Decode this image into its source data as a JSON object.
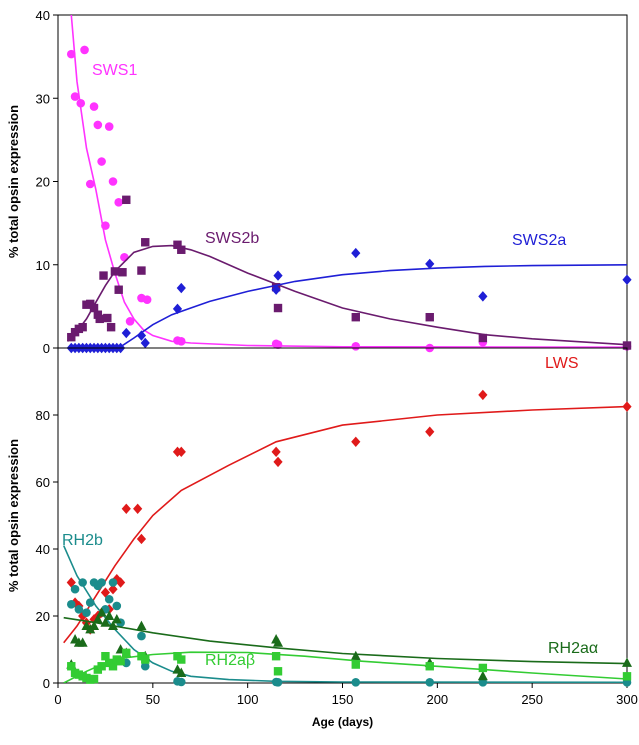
{
  "chart_data": [
    {
      "type": "scatter",
      "ylabel": "% total opsin expression",
      "ylim": [
        0,
        40
      ],
      "yticks": [
        0,
        10,
        20,
        30,
        40
      ],
      "xlim": [
        0,
        300
      ],
      "colors": {
        "SWS1": "#ff33ff",
        "SWS2b": "#6a1b6e",
        "SWS2a": "#1f1fd6"
      },
      "series": [
        {
          "name": "SWS1",
          "marker": "circle",
          "points": [
            [
              7,
              35.3
            ],
            [
              9,
              30.2
            ],
            [
              12,
              29.4
            ],
            [
              14,
              35.8
            ],
            [
              17,
              19.7
            ],
            [
              19,
              29
            ],
            [
              21,
              26.8
            ],
            [
              23,
              22.4
            ],
            [
              25,
              14.7
            ],
            [
              27,
              26.6
            ],
            [
              29,
              20
            ],
            [
              32,
              17.5
            ],
            [
              35,
              10.9
            ],
            [
              38,
              3.2
            ],
            [
              44,
              6
            ],
            [
              47,
              5.8
            ],
            [
              63,
              0.9
            ],
            [
              65,
              0.8
            ],
            [
              115,
              0.5
            ],
            [
              116,
              0.4
            ],
            [
              157,
              0.2
            ],
            [
              196,
              0
            ],
            [
              224,
              0.7
            ],
            [
              300,
              0.2
            ]
          ],
          "fit": [
            [
              2,
              45
            ],
            [
              7,
              40
            ],
            [
              10,
              32
            ],
            [
              15,
              24
            ],
            [
              20,
              19
            ],
            [
              25,
              13
            ],
            [
              30,
              9
            ],
            [
              35,
              5.5
            ],
            [
              40,
              3.5
            ],
            [
              45,
              2.2
            ],
            [
              50,
              1.5
            ],
            [
              60,
              0.8
            ],
            [
              70,
              0.6
            ],
            [
              100,
              0.3
            ],
            [
              150,
              0.15
            ],
            [
              300,
              0.1
            ]
          ]
        },
        {
          "name": "SWS2b",
          "marker": "square",
          "points": [
            [
              7,
              1.3
            ],
            [
              9,
              1.9
            ],
            [
              11,
              2.3
            ],
            [
              13,
              2.5
            ],
            [
              15,
              5.2
            ],
            [
              17,
              5.3
            ],
            [
              19,
              4.8
            ],
            [
              21,
              4
            ],
            [
              22,
              3.5
            ],
            [
              24,
              8.7
            ],
            [
              26,
              3.6
            ],
            [
              28,
              2.5
            ],
            [
              30,
              9.2
            ],
            [
              32,
              7
            ],
            [
              34,
              9.1
            ],
            [
              36,
              17.8
            ],
            [
              44,
              9.3
            ],
            [
              46,
              12.7
            ],
            [
              63,
              12.4
            ],
            [
              65,
              11.8
            ],
            [
              115,
              7.3
            ],
            [
              116,
              4.8
            ],
            [
              157,
              3.7
            ],
            [
              196,
              3.7
            ],
            [
              224,
              1.2
            ],
            [
              300,
              0.3
            ]
          ],
          "fit": [
            [
              5,
              0.8
            ],
            [
              10,
              2
            ],
            [
              15,
              3.5
            ],
            [
              20,
              5.5
            ],
            [
              25,
              7.5
            ],
            [
              30,
              9.2
            ],
            [
              40,
              11.5
            ],
            [
              50,
              12.2
            ],
            [
              60,
              12.3
            ],
            [
              70,
              11.8
            ],
            [
              80,
              11
            ],
            [
              100,
              9
            ],
            [
              125,
              6.8
            ],
            [
              150,
              4.8
            ],
            [
              175,
              3.5
            ],
            [
              200,
              2.5
            ],
            [
              225,
              1.6
            ],
            [
              250,
              1.1
            ],
            [
              300,
              0.4
            ]
          ]
        },
        {
          "name": "SWS2a",
          "marker": "diamond",
          "points": [
            [
              7,
              0
            ],
            [
              9,
              0
            ],
            [
              11,
              0
            ],
            [
              13,
              0
            ],
            [
              15,
              0
            ],
            [
              17,
              0
            ],
            [
              19,
              0
            ],
            [
              21,
              0
            ],
            [
              23,
              0
            ],
            [
              25,
              0
            ],
            [
              27,
              0
            ],
            [
              29,
              0
            ],
            [
              31,
              0
            ],
            [
              33,
              0
            ],
            [
              36,
              1.8
            ],
            [
              44,
              1.5
            ],
            [
              46,
              0.6
            ],
            [
              63,
              4.7
            ],
            [
              65,
              7.2
            ],
            [
              115,
              7
            ],
            [
              116,
              8.7
            ],
            [
              157,
              11.4
            ],
            [
              196,
              10.1
            ],
            [
              224,
              6.2
            ],
            [
              300,
              8.2
            ]
          ],
          "fit": [
            [
              32,
              0
            ],
            [
              40,
              1.2
            ],
            [
              50,
              2.8
            ],
            [
              60,
              4
            ],
            [
              70,
              4.8
            ],
            [
              80,
              5.6
            ],
            [
              100,
              6.8
            ],
            [
              125,
              8
            ],
            [
              150,
              8.8
            ],
            [
              175,
              9.3
            ],
            [
              200,
              9.6
            ],
            [
              225,
              9.8
            ],
            [
              250,
              9.9
            ],
            [
              300,
              10
            ]
          ]
        }
      ]
    },
    {
      "type": "scatter",
      "xlabel": "Age (days)",
      "ylabel": "% total opsin expression",
      "ylim": [
        0,
        100
      ],
      "yticks": [
        0,
        20,
        40,
        60,
        80
      ],
      "xlim": [
        0,
        300
      ],
      "xticks": [
        0,
        50,
        100,
        150,
        200,
        250,
        300
      ],
      "colors": {
        "LWS": "#e01a1a",
        "RH2b": "#1b8c8c",
        "RH2aα": "#1a6b1a",
        "RH2aβ": "#33cc33"
      },
      "series": [
        {
          "name": "LWS",
          "marker": "diamond",
          "points": [
            [
              7,
              30
            ],
            [
              9,
              24
            ],
            [
              11,
              23
            ],
            [
              13,
              20
            ],
            [
              15,
              18
            ],
            [
              17,
              16
            ],
            [
              19,
              19
            ],
            [
              21,
              20
            ],
            [
              23,
              21
            ],
            [
              25,
              27
            ],
            [
              27,
              22
            ],
            [
              29,
              28
            ],
            [
              31,
              31
            ],
            [
              33,
              30
            ],
            [
              36,
              52
            ],
            [
              42,
              52
            ],
            [
              44,
              43
            ],
            [
              63,
              69
            ],
            [
              65,
              69
            ],
            [
              115,
              69
            ],
            [
              116,
              66
            ],
            [
              157,
              72
            ],
            [
              196,
              75
            ],
            [
              224,
              86
            ],
            [
              300,
              82.5
            ]
          ],
          "fit": [
            [
              3,
              12
            ],
            [
              10,
              17
            ],
            [
              20,
              26
            ],
            [
              30,
              35
            ],
            [
              40,
              43
            ],
            [
              50,
              50
            ],
            [
              65,
              57.5
            ],
            [
              90,
              65
            ],
            [
              115,
              72
            ],
            [
              150,
              77
            ],
            [
              200,
              80
            ],
            [
              250,
              81.5
            ],
            [
              300,
              82.5
            ]
          ]
        },
        {
          "name": "RH2b",
          "marker": "circle",
          "points": [
            [
              7,
              23.5
            ],
            [
              9,
              28
            ],
            [
              11,
              22
            ],
            [
              13,
              30
            ],
            [
              15,
              21
            ],
            [
              17,
              24
            ],
            [
              19,
              30
            ],
            [
              21,
              29
            ],
            [
              23,
              30
            ],
            [
              25,
              22
            ],
            [
              27,
              25
            ],
            [
              29,
              30
            ],
            [
              31,
              23
            ],
            [
              33,
              18
            ],
            [
              36,
              6
            ],
            [
              44,
              14
            ],
            [
              46,
              5
            ],
            [
              63,
              0.5
            ],
            [
              65,
              0.3
            ],
            [
              115,
              0.3
            ],
            [
              116,
              0.2
            ],
            [
              157,
              0.2
            ],
            [
              196,
              0.2
            ],
            [
              224,
              0.2
            ],
            [
              300,
              0.2
            ]
          ],
          "fit": [
            [
              3,
              41
            ],
            [
              10,
              32
            ],
            [
              20,
              23
            ],
            [
              30,
              16
            ],
            [
              40,
              10
            ],
            [
              50,
              6
            ],
            [
              60,
              3.5
            ],
            [
              70,
              2
            ],
            [
              90,
              1
            ],
            [
              115,
              0.5
            ],
            [
              150,
              0.3
            ],
            [
              300,
              0.2
            ]
          ]
        },
        {
          "name": "RH2aα",
          "marker": "triangle",
          "points": [
            [
              7,
              5.5
            ],
            [
              9,
              13
            ],
            [
              11,
              12
            ],
            [
              13,
              12
            ],
            [
              15,
              17
            ],
            [
              17,
              16
            ],
            [
              19,
              17
            ],
            [
              21,
              19
            ],
            [
              23,
              21
            ],
            [
              25,
              18
            ],
            [
              27,
              20
            ],
            [
              29,
              17
            ],
            [
              31,
              19
            ],
            [
              33,
              10
            ],
            [
              36,
              9
            ],
            [
              44,
              17
            ],
            [
              46,
              8
            ],
            [
              63,
              4
            ],
            [
              65,
              3
            ],
            [
              115,
              13
            ],
            [
              116,
              12
            ],
            [
              157,
              8
            ],
            [
              196,
              6
            ],
            [
              224,
              2
            ],
            [
              300,
              6
            ]
          ],
          "fit": [
            [
              3,
              19.5
            ],
            [
              20,
              18
            ],
            [
              50,
              15
            ],
            [
              80,
              12.5
            ],
            [
              115,
              10.5
            ],
            [
              150,
              8.8
            ],
            [
              200,
              7.3
            ],
            [
              250,
              6.4
            ],
            [
              300,
              5.8
            ]
          ]
        },
        {
          "name": "RH2aβ",
          "marker": "square",
          "points": [
            [
              7,
              5
            ],
            [
              9,
              3
            ],
            [
              11,
              2.5
            ],
            [
              13,
              2
            ],
            [
              15,
              1.5
            ],
            [
              17,
              1
            ],
            [
              19,
              1.2
            ],
            [
              21,
              4
            ],
            [
              23,
              5
            ],
            [
              25,
              8
            ],
            [
              27,
              6
            ],
            [
              29,
              5
            ],
            [
              31,
              7
            ],
            [
              33,
              6.5
            ],
            [
              36,
              9
            ],
            [
              44,
              8
            ],
            [
              46,
              7
            ],
            [
              63,
              8
            ],
            [
              65,
              7
            ],
            [
              115,
              8
            ],
            [
              116,
              3.5
            ],
            [
              157,
              5.5
            ],
            [
              196,
              5
            ],
            [
              224,
              4.5
            ],
            [
              300,
              2
            ]
          ],
          "fit": [
            [
              3,
              0
            ],
            [
              15,
              3.5
            ],
            [
              25,
              6
            ],
            [
              35,
              7.5
            ],
            [
              50,
              8.5
            ],
            [
              70,
              9.2
            ],
            [
              100,
              9.1
            ],
            [
              130,
              8
            ],
            [
              160,
              6.5
            ],
            [
              200,
              5
            ],
            [
              250,
              3
            ],
            [
              300,
              1.2
            ]
          ]
        }
      ]
    }
  ]
}
